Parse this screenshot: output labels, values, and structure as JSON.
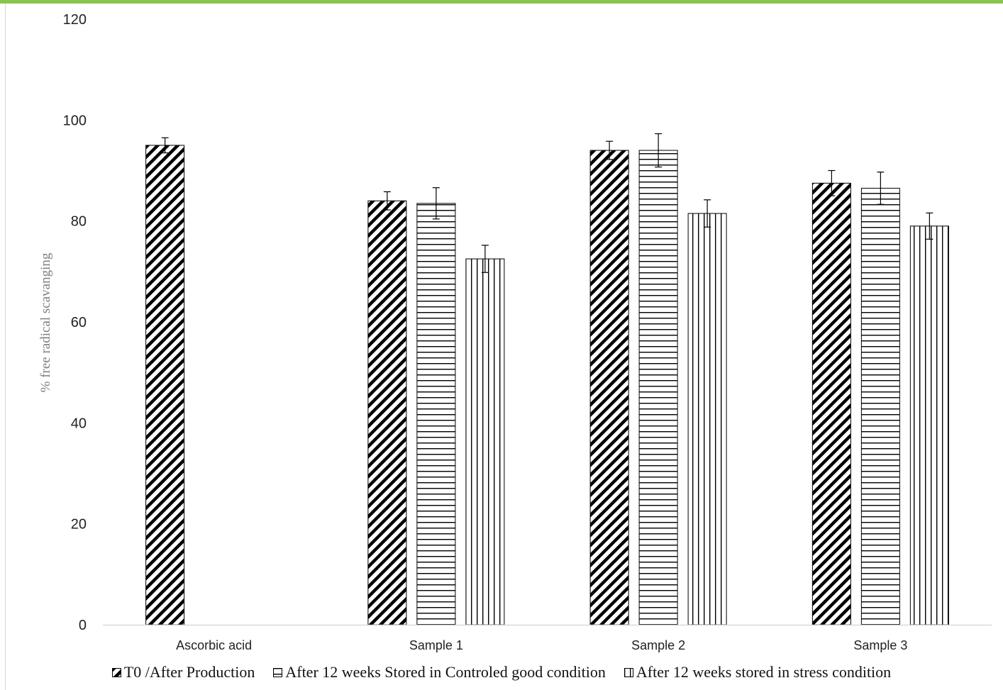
{
  "chart_data": {
    "type": "bar",
    "title": "",
    "xlabel": "",
    "ylabel": "% free radical  scavanging",
    "ylim": [
      0,
      120
    ],
    "yticks": [
      0,
      20,
      40,
      60,
      80,
      100,
      120
    ],
    "grid": false,
    "legend_position": "bottom",
    "categories": [
      "Ascorbic acid",
      "Sample 1",
      "Sample 2",
      "Sample 3"
    ],
    "series": [
      {
        "name": "T0 /After Production",
        "pattern": "diagonal-hatch",
        "values": [
          95,
          84,
          94,
          87.5
        ],
        "errors": [
          1.5,
          1.8,
          1.8,
          2.5
        ]
      },
      {
        "name": "After 12 weeks Stored in Controled good condition",
        "pattern": "horizontal-hatch",
        "values": [
          null,
          83.5,
          94,
          86.5
        ],
        "errors": [
          null,
          3.1,
          3.3,
          3.2
        ]
      },
      {
        "name": "After 12 weeks stored in stress condition",
        "pattern": "vertical-hatch",
        "values": [
          null,
          72.5,
          81.5,
          79
        ],
        "errors": [
          null,
          2.7,
          2.7,
          2.6
        ]
      }
    ],
    "colors": {
      "ink": "#000000",
      "axis": "#d9d9d9",
      "accent_rule": "#8cc34a"
    }
  }
}
